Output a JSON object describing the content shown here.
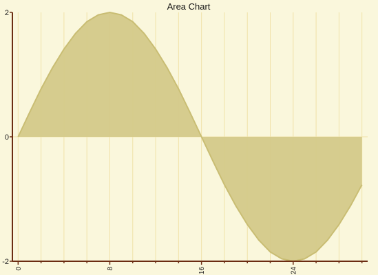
{
  "chart_data": {
    "type": "area",
    "title": "Area Chart",
    "xlabel": "",
    "ylabel": "",
    "xlim": [
      -0.5,
      30.5
    ],
    "ylim": [
      -2,
      2
    ],
    "x_ticks": [
      0,
      8,
      16,
      24
    ],
    "x_minor_ticks": [
      2,
      4,
      6,
      10,
      12,
      14,
      18,
      20,
      22,
      26,
      28,
      30
    ],
    "y_ticks": [
      -2,
      0,
      2
    ],
    "grid": true,
    "series": [
      {
        "x": [
          0,
          1,
          2,
          3,
          4,
          5,
          6,
          7,
          8,
          9,
          10,
          11,
          12,
          13,
          14,
          15,
          16,
          17,
          18,
          19,
          20,
          21,
          22,
          23,
          24,
          25,
          26,
          27,
          28,
          29,
          30
        ],
        "values": [
          0.0,
          0.39,
          0.77,
          1.11,
          1.41,
          1.66,
          1.85,
          1.96,
          2.0,
          1.96,
          1.85,
          1.66,
          1.41,
          1.11,
          0.77,
          0.39,
          0.0,
          -0.39,
          -0.77,
          -1.11,
          -1.41,
          -1.66,
          -1.85,
          -1.96,
          -2.0,
          -1.96,
          -1.85,
          -1.66,
          -1.41,
          -1.11,
          -0.77
        ]
      }
    ]
  },
  "colors": {
    "background": "#faf7dc",
    "area_fill": "#d4c989",
    "area_stroke": "#c9bd73",
    "grid": "#f0e2a8",
    "axis": "#6b2c12"
  }
}
